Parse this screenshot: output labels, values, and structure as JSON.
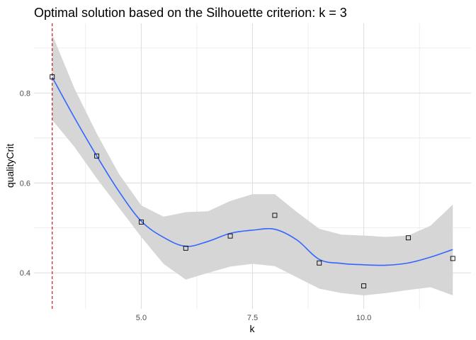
{
  "chart_data": {
    "type": "scatter",
    "title": "Optimal solution based on the Silhouette criterion: k =  3",
    "xlabel": "k",
    "ylabel": "qualityCrit",
    "xlim": [
      2.59,
      12.41
    ],
    "ylim": [
      0.32,
      0.955
    ],
    "x_ticks": [
      5.0,
      7.5,
      10.0
    ],
    "x_tick_labels": [
      "5.0",
      "7.5",
      "10.0"
    ],
    "x_minor_ticks": [
      3.75,
      6.25,
      8.75,
      11.25
    ],
    "y_ticks": [
      0.4,
      0.6,
      0.8
    ],
    "y_tick_labels": [
      "0.4",
      "0.6",
      "0.8"
    ],
    "y_minor_ticks": [
      0.5,
      0.7,
      0.9
    ],
    "grid": true,
    "points": {
      "x": [
        3,
        4,
        5,
        6,
        7,
        8,
        9,
        10,
        11,
        12
      ],
      "y": [
        0.836,
        0.66,
        0.513,
        0.455,
        0.482,
        0.528,
        0.422,
        0.371,
        0.478,
        0.432
      ]
    },
    "smooth": {
      "x": [
        3.0,
        3.5,
        4.0,
        4.5,
        5.0,
        5.5,
        6.0,
        6.5,
        7.0,
        7.5,
        8.0,
        8.5,
        9.0,
        9.5,
        10.0,
        10.5,
        11.0,
        11.5,
        12.0
      ],
      "y": [
        0.835,
        0.745,
        0.66,
        0.581,
        0.515,
        0.479,
        0.459,
        0.47,
        0.488,
        0.495,
        0.497,
        0.473,
        0.43,
        0.421,
        0.418,
        0.417,
        0.422,
        0.435,
        0.452
      ],
      "lower": [
        0.74,
        0.68,
        0.61,
        0.545,
        0.48,
        0.42,
        0.385,
        0.4,
        0.414,
        0.42,
        0.415,
        0.39,
        0.365,
        0.355,
        0.35,
        0.355,
        0.362,
        0.368,
        0.35
      ],
      "upper": [
        0.93,
        0.81,
        0.71,
        0.62,
        0.55,
        0.525,
        0.535,
        0.537,
        0.56,
        0.575,
        0.575,
        0.535,
        0.498,
        0.485,
        0.483,
        0.48,
        0.483,
        0.505,
        0.552
      ]
    },
    "vline": {
      "x": 3,
      "color": "#cc0000"
    },
    "colors": {
      "line": "#3366ff",
      "ribbon": "#d6d6d6",
      "point_stroke": "#000000",
      "grid": "#dedede"
    }
  }
}
